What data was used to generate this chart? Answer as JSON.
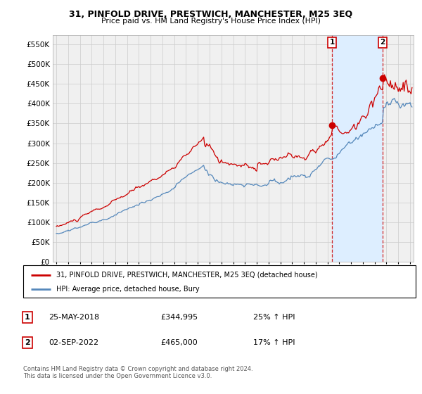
{
  "title": "31, PINFOLD DRIVE, PRESTWICH, MANCHESTER, M25 3EQ",
  "subtitle": "Price paid vs. HM Land Registry's House Price Index (HPI)",
  "legend_property": "31, PINFOLD DRIVE, PRESTWICH, MANCHESTER, M25 3EQ (detached house)",
  "legend_hpi": "HPI: Average price, detached house, Bury",
  "footer": "Contains HM Land Registry data © Crown copyright and database right 2024.\nThis data is licensed under the Open Government Licence v3.0.",
  "sale1_label": "1",
  "sale1_date": "25-MAY-2018",
  "sale1_price": "£344,995",
  "sale1_hpi": "25% ↑ HPI",
  "sale1_year": 2018.38,
  "sale1_value": 344995,
  "sale2_label": "2",
  "sale2_date": "02-SEP-2022",
  "sale2_price": "£465,000",
  "sale2_hpi": "17% ↑ HPI",
  "sale2_year": 2022.67,
  "sale2_value": 465000,
  "property_color": "#cc0000",
  "hpi_color": "#5588bb",
  "shade_color": "#ddeeff",
  "grid_color": "#cccccc",
  "bg_color": "#ffffff",
  "plot_bg_color": "#f0f0f0",
  "ylim": [
    0,
    572000
  ],
  "xlim": [
    1994.7,
    2025.3
  ],
  "yticks": [
    0,
    50000,
    100000,
    150000,
    200000,
    250000,
    300000,
    350000,
    400000,
    450000,
    500000,
    550000
  ],
  "xticks": [
    1995,
    1996,
    1997,
    1998,
    1999,
    2000,
    2001,
    2002,
    2003,
    2004,
    2005,
    2006,
    2007,
    2008,
    2009,
    2010,
    2011,
    2012,
    2013,
    2014,
    2015,
    2016,
    2017,
    2018,
    2019,
    2020,
    2021,
    2022,
    2023,
    2024,
    2025
  ]
}
